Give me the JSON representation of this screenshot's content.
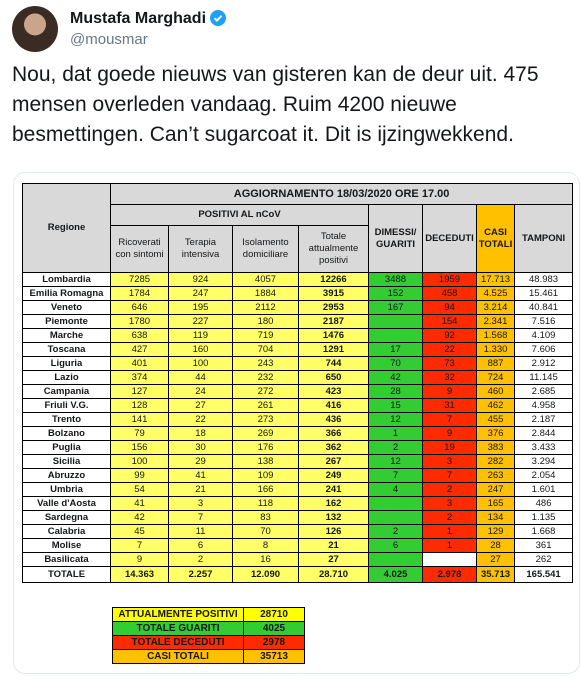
{
  "tweet": {
    "name": "Mustafa Marghadi",
    "handle": "@mousmar",
    "text": "Nou, dat goede nieuws van gisteren kan de deur uit. 475 mensen overleden vandaag. Ruim 4200 nieuwe besmettingen. Can’t sugarcoat it. Dit is ijzingwekkend."
  },
  "table": {
    "title": "AGGIORNAMENTO 18/03/2020 ORE 17.00",
    "group_header": "POSITIVI AL nCoV",
    "columns": [
      "Regione",
      "Ricoverati con sintomi",
      "Terapia intensiva",
      "Isolamento domiciliare",
      "Totale attualmente positivi",
      "DIMESSI/ GUARITI",
      "DECEDUTI",
      "CASI TOTALI",
      "TAMPONI"
    ],
    "rows": [
      [
        "Lombardia",
        "7285",
        "924",
        "4057",
        "12266",
        "3488",
        "1959",
        "17.713",
        "48.983"
      ],
      [
        "Emilia Romagna",
        "1784",
        "247",
        "1884",
        "3915",
        "152",
        "458",
        "4.525",
        "15.461"
      ],
      [
        "Veneto",
        "646",
        "195",
        "2112",
        "2953",
        "167",
        "94",
        "3.214",
        "40.841"
      ],
      [
        "Piemonte",
        "1780",
        "227",
        "180",
        "2187",
        null,
        "154",
        "2.341",
        "7.516"
      ],
      [
        "Marche",
        "638",
        "119",
        "719",
        "1476",
        null,
        "92",
        "1.568",
        "4.109"
      ],
      [
        "Toscana",
        "427",
        "160",
        "704",
        "1291",
        "17",
        "22",
        "1.330",
        "7.606"
      ],
      [
        "Liguria",
        "401",
        "100",
        "243",
        "744",
        "70",
        "73",
        "887",
        "2.912"
      ],
      [
        "Lazio",
        "374",
        "44",
        "232",
        "650",
        "42",
        "32",
        "724",
        "11.145"
      ],
      [
        "Campania",
        "127",
        "24",
        "272",
        "423",
        "28",
        "9",
        "460",
        "2.685"
      ],
      [
        "Friuli V.G.",
        "128",
        "27",
        "261",
        "416",
        "15",
        "31",
        "462",
        "4.958"
      ],
      [
        "Trento",
        "141",
        "22",
        "273",
        "436",
        "12",
        "7",
        "455",
        "2.187"
      ],
      [
        "Bolzano",
        "79",
        "18",
        "269",
        "366",
        "1",
        "9",
        "376",
        "2.844"
      ],
      [
        "Puglia",
        "156",
        "30",
        "176",
        "362",
        "2",
        "19",
        "383",
        "3.433"
      ],
      [
        "Sicilia",
        "100",
        "29",
        "138",
        "267",
        "12",
        "3",
        "282",
        "3.294"
      ],
      [
        "Abruzzo",
        "99",
        "41",
        "109",
        "249",
        "7",
        "7",
        "263",
        "2.054"
      ],
      [
        "Umbria",
        "54",
        "21",
        "166",
        "241",
        "4",
        "2",
        "247",
        "1.601"
      ],
      [
        "Valle d'Aosta",
        "41",
        "3",
        "118",
        "162",
        null,
        "3",
        "165",
        "486"
      ],
      [
        "Sardegna",
        "42",
        "7",
        "83",
        "132",
        null,
        "2",
        "134",
        "1.135"
      ],
      [
        "Calabria",
        "45",
        "11",
        "70",
        "126",
        "2",
        "1",
        "129",
        "1.668"
      ],
      [
        "Molise",
        "7",
        "6",
        "8",
        "21",
        "6",
        "1",
        "28",
        "361"
      ],
      [
        "Basilicata",
        "9",
        "2",
        "16",
        "27",
        null,
        null,
        "27",
        "262"
      ]
    ],
    "total": [
      "TOTALE",
      "14.363",
      "2.257",
      "12.090",
      "28.710",
      "4.025",
      "2.978",
      "35.713",
      "165.541"
    ]
  },
  "summary": [
    {
      "label": "ATTUALMENTE POSITIVI",
      "value": 28710
    },
    {
      "label": "TOTALE GUARITI",
      "value": 4025
    },
    {
      "label": "TOTALE DECEDUTI",
      "value": 2978
    },
    {
      "label": "CASI TOTALI",
      "value": 35713
    }
  ]
}
